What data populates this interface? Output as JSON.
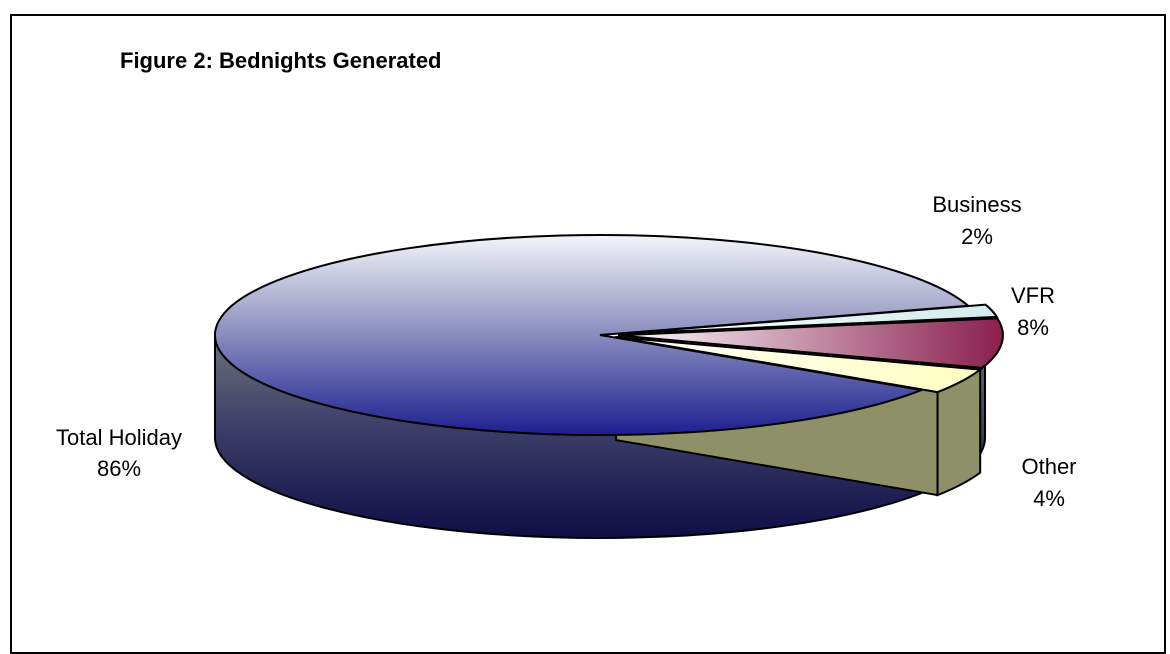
{
  "chart_data": {
    "type": "pie",
    "title": "Figure 2: Bednights Generated",
    "three_d": true,
    "slices": [
      {
        "name": "Total Holiday",
        "value": 86,
        "label_value": "86%",
        "color": "#2a2f86"
      },
      {
        "name": "Business",
        "value": 2,
        "label_value": "2%",
        "color": "#dff0f0"
      },
      {
        "name": "VFR",
        "value": 8,
        "label_value": "8%",
        "color": "#9a2c5a"
      },
      {
        "name": "Other",
        "value": 4,
        "label_value": "4%",
        "color": "#ffffc8"
      }
    ]
  }
}
